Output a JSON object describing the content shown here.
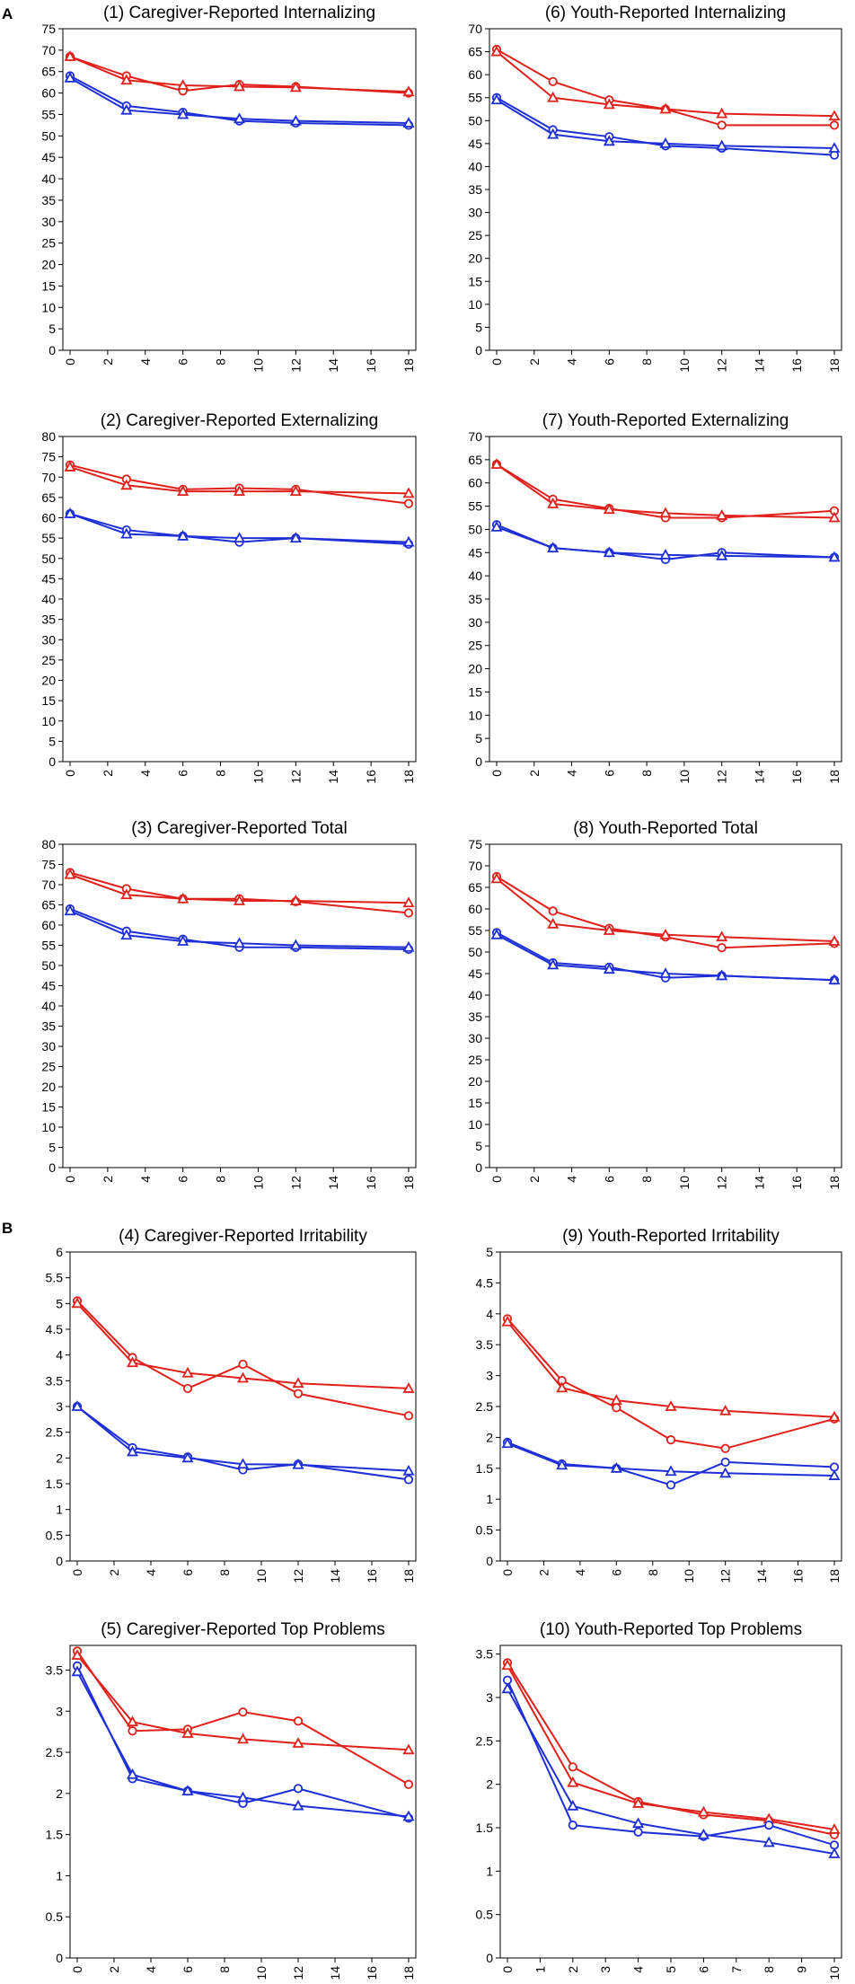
{
  "figure": {
    "section_labels": [
      "A",
      "B"
    ],
    "series_colors": {
      "red": "#e0201b",
      "blue": "#1f2fd6"
    },
    "marker_shapes": {
      "circle": "circle-marker",
      "triangle": "triangle-marker"
    }
  },
  "chart_data": [
    {
      "id": "p1",
      "type": "line",
      "title": "(1) Caregiver-Reported Internalizing",
      "x": [
        0,
        3,
        6,
        9,
        12,
        18
      ],
      "ylim": [
        0,
        75
      ],
      "ystep": 5,
      "xlim": [
        0,
        18
      ],
      "xticks": [
        0,
        2,
        4,
        6,
        8,
        10,
        12,
        14,
        16,
        18
      ],
      "ytick_decimals": 0,
      "series": [
        {
          "name": "red circle",
          "color": "red",
          "marker": "circle",
          "values": [
            68.5,
            64,
            60.5,
            62,
            61.5,
            60
          ]
        },
        {
          "name": "red triangle",
          "color": "red",
          "marker": "triangle",
          "values": [
            68.5,
            63,
            61.8,
            61.5,
            61.3,
            60.3
          ]
        },
        {
          "name": "blue circle",
          "color": "blue",
          "marker": "circle",
          "values": [
            64,
            57,
            55.5,
            53.5,
            53,
            52.5
          ]
        },
        {
          "name": "blue triangle",
          "color": "blue",
          "marker": "triangle",
          "values": [
            63.5,
            56,
            55,
            54,
            53.5,
            53
          ]
        }
      ]
    },
    {
      "id": "p6",
      "type": "line",
      "title": "(6) Youth-Reported Internalizing",
      "x": [
        0,
        3,
        6,
        9,
        12,
        18
      ],
      "ylim": [
        0,
        70
      ],
      "ystep": 5,
      "xlim": [
        0,
        18
      ],
      "xticks": [
        0,
        2,
        4,
        6,
        8,
        10,
        12,
        14,
        16,
        18
      ],
      "ytick_decimals": 0,
      "series": [
        {
          "name": "red circle",
          "color": "red",
          "marker": "circle",
          "values": [
            65.5,
            58.5,
            54.5,
            52.5,
            49,
            49
          ]
        },
        {
          "name": "red triangle",
          "color": "red",
          "marker": "triangle",
          "values": [
            65,
            55,
            53.5,
            52.5,
            51.5,
            51
          ]
        },
        {
          "name": "blue circle",
          "color": "blue",
          "marker": "circle",
          "values": [
            55,
            48,
            46.5,
            44.5,
            44,
            42.5
          ]
        },
        {
          "name": "blue triangle",
          "color": "blue",
          "marker": "triangle",
          "values": [
            54.5,
            47,
            45.5,
            45,
            44.5,
            44
          ]
        }
      ]
    },
    {
      "id": "p2",
      "type": "line",
      "title": "(2) Caregiver-Reported Externalizing",
      "x": [
        0,
        3,
        6,
        9,
        12,
        18
      ],
      "ylim": [
        0,
        80
      ],
      "ystep": 5,
      "xlim": [
        0,
        18
      ],
      "xticks": [
        0,
        2,
        4,
        6,
        8,
        10,
        12,
        14,
        16,
        18
      ],
      "ytick_decimals": 0,
      "series": [
        {
          "name": "red circle",
          "color": "red",
          "marker": "circle",
          "values": [
            73,
            69.5,
            67,
            67.3,
            67,
            63.5
          ]
        },
        {
          "name": "red triangle",
          "color": "red",
          "marker": "triangle",
          "values": [
            72.5,
            68,
            66.5,
            66.5,
            66.5,
            66
          ]
        },
        {
          "name": "blue circle",
          "color": "blue",
          "marker": "circle",
          "values": [
            61,
            57,
            55.5,
            54,
            55,
            53.5
          ]
        },
        {
          "name": "blue triangle",
          "color": "blue",
          "marker": "triangle",
          "values": [
            61,
            56,
            55.5,
            55,
            55,
            54
          ]
        }
      ]
    },
    {
      "id": "p7",
      "type": "line",
      "title": "(7) Youth-Reported Externalizing",
      "x": [
        0,
        3,
        6,
        9,
        12,
        18
      ],
      "ylim": [
        0,
        70
      ],
      "ystep": 5,
      "xlim": [
        0,
        18
      ],
      "xticks": [
        0,
        2,
        4,
        6,
        8,
        10,
        12,
        14,
        16,
        18
      ],
      "ytick_decimals": 0,
      "series": [
        {
          "name": "red circle",
          "color": "red",
          "marker": "circle",
          "values": [
            64,
            56.5,
            54.5,
            52.5,
            52.5,
            54
          ]
        },
        {
          "name": "red triangle",
          "color": "red",
          "marker": "triangle",
          "values": [
            64,
            55.5,
            54.3,
            53.5,
            53,
            52.5
          ]
        },
        {
          "name": "blue circle",
          "color": "blue",
          "marker": "circle",
          "values": [
            51,
            46,
            45,
            43.5,
            45,
            44
          ]
        },
        {
          "name": "blue triangle",
          "color": "blue",
          "marker": "triangle",
          "values": [
            50.5,
            46,
            45,
            44.5,
            44.3,
            44
          ]
        }
      ]
    },
    {
      "id": "p3",
      "type": "line",
      "title": "(3) Caregiver-Reported Total",
      "x": [
        0,
        3,
        6,
        9,
        12,
        18
      ],
      "ylim": [
        0,
        80
      ],
      "ystep": 5,
      "xlim": [
        0,
        18
      ],
      "xticks": [
        0,
        2,
        4,
        6,
        8,
        10,
        12,
        14,
        16,
        18
      ],
      "ytick_decimals": 0,
      "series": [
        {
          "name": "red circle",
          "color": "red",
          "marker": "circle",
          "values": [
            73,
            69,
            66.5,
            66.5,
            65.8,
            63
          ]
        },
        {
          "name": "red triangle",
          "color": "red",
          "marker": "triangle",
          "values": [
            72.5,
            67.5,
            66.5,
            66,
            66,
            65.5
          ]
        },
        {
          "name": "blue circle",
          "color": "blue",
          "marker": "circle",
          "values": [
            64,
            58.5,
            56.5,
            54.5,
            54.5,
            54
          ]
        },
        {
          "name": "blue triangle",
          "color": "blue",
          "marker": "triangle",
          "values": [
            63.5,
            57.5,
            56,
            55.5,
            55,
            54.5
          ]
        }
      ]
    },
    {
      "id": "p8",
      "type": "line",
      "title": "(8) Youth-Reported Total",
      "x": [
        0,
        3,
        6,
        9,
        12,
        18
      ],
      "ylim": [
        0,
        75
      ],
      "ystep": 5,
      "xlim": [
        0,
        18
      ],
      "xticks": [
        0,
        2,
        4,
        6,
        8,
        10,
        12,
        14,
        16,
        18
      ],
      "ytick_decimals": 0,
      "series": [
        {
          "name": "red circle",
          "color": "red",
          "marker": "circle",
          "values": [
            67.5,
            59.5,
            55.5,
            53.5,
            51,
            52
          ]
        },
        {
          "name": "red triangle",
          "color": "red",
          "marker": "triangle",
          "values": [
            67,
            56.5,
            55,
            54,
            53.5,
            52.5
          ]
        },
        {
          "name": "blue circle",
          "color": "blue",
          "marker": "circle",
          "values": [
            54.5,
            47.5,
            46.5,
            44,
            44.5,
            43.5
          ]
        },
        {
          "name": "blue triangle",
          "color": "blue",
          "marker": "triangle",
          "values": [
            54,
            47,
            46,
            45,
            44.5,
            43.5
          ]
        }
      ]
    },
    {
      "id": "p4",
      "type": "line",
      "title": "(4) Caregiver-Reported Irritability",
      "x": [
        0,
        3,
        6,
        9,
        12,
        18
      ],
      "ylim": [
        0,
        6
      ],
      "ystep": 0.5,
      "xlim": [
        0,
        18
      ],
      "xticks": [
        0,
        2,
        4,
        6,
        8,
        10,
        12,
        14,
        16,
        18
      ],
      "ytick_decimals": 1,
      "series": [
        {
          "name": "red circle",
          "color": "red",
          "marker": "circle",
          "values": [
            5.05,
            3.95,
            3.35,
            3.82,
            3.25,
            2.82
          ]
        },
        {
          "name": "red triangle",
          "color": "red",
          "marker": "triangle",
          "values": [
            5.0,
            3.85,
            3.65,
            3.55,
            3.45,
            3.35
          ]
        },
        {
          "name": "blue circle",
          "color": "blue",
          "marker": "circle",
          "values": [
            3.0,
            2.2,
            2.02,
            1.77,
            1.88,
            1.58
          ]
        },
        {
          "name": "blue triangle",
          "color": "blue",
          "marker": "triangle",
          "values": [
            3.0,
            2.12,
            2.0,
            1.88,
            1.87,
            1.75
          ]
        }
      ]
    },
    {
      "id": "p9",
      "type": "line",
      "title": "(9) Youth-Reported Irritability",
      "x": [
        0,
        3,
        6,
        9,
        12,
        18
      ],
      "ylim": [
        0,
        5
      ],
      "ystep": 0.5,
      "xlim": [
        0,
        18
      ],
      "xticks": [
        0,
        2,
        4,
        6,
        8,
        10,
        12,
        14,
        16,
        18
      ],
      "ytick_decimals": 1,
      "series": [
        {
          "name": "red circle",
          "color": "red",
          "marker": "circle",
          "values": [
            3.92,
            2.92,
            2.48,
            1.96,
            1.82,
            2.3
          ]
        },
        {
          "name": "red triangle",
          "color": "red",
          "marker": "triangle",
          "values": [
            3.87,
            2.8,
            2.6,
            2.5,
            2.43,
            2.33
          ]
        },
        {
          "name": "blue circle",
          "color": "blue",
          "marker": "circle",
          "values": [
            1.92,
            1.57,
            1.5,
            1.23,
            1.6,
            1.52
          ]
        },
        {
          "name": "blue triangle",
          "color": "blue",
          "marker": "triangle",
          "values": [
            1.9,
            1.55,
            1.5,
            1.45,
            1.42,
            1.38
          ]
        }
      ]
    },
    {
      "id": "p5",
      "type": "line",
      "title": "(5) Caregiver-Reported Top Problems",
      "x": [
        0,
        3,
        6,
        9,
        12,
        18
      ],
      "ylim": [
        0,
        3.8
      ],
      "ystep": 0.5,
      "ytop_tick": 3.5,
      "xlim": [
        0,
        18
      ],
      "xticks": [
        0,
        2,
        4,
        6,
        8,
        10,
        12,
        14,
        16,
        18
      ],
      "ytick_decimals": 1,
      "series": [
        {
          "name": "red circle",
          "color": "red",
          "marker": "circle",
          "values": [
            3.73,
            2.76,
            2.78,
            2.99,
            2.88,
            2.11
          ]
        },
        {
          "name": "red triangle",
          "color": "red",
          "marker": "triangle",
          "values": [
            3.68,
            2.87,
            2.73,
            2.66,
            2.61,
            2.53
          ]
        },
        {
          "name": "blue circle",
          "color": "blue",
          "marker": "circle",
          "values": [
            3.55,
            2.18,
            2.03,
            1.88,
            2.06,
            1.7
          ]
        },
        {
          "name": "blue triangle",
          "color": "blue",
          "marker": "triangle",
          "values": [
            3.48,
            2.23,
            2.03,
            1.95,
            1.85,
            1.72
          ]
        }
      ]
    },
    {
      "id": "p10",
      "type": "line",
      "title": "(10) Youth-Reported Top Problems",
      "x": [
        0,
        2,
        4,
        6,
        8,
        10
      ],
      "ylim": [
        0,
        3.6
      ],
      "ystep": 0.5,
      "ytop_tick": 3.5,
      "xlim": [
        0,
        10
      ],
      "xticks": [
        0,
        1,
        2,
        3,
        4,
        5,
        6,
        7,
        8,
        9,
        10
      ],
      "ytick_decimals": 1,
      "series": [
        {
          "name": "red circle",
          "color": "red",
          "marker": "circle",
          "values": [
            3.4,
            2.2,
            1.8,
            1.65,
            1.58,
            1.42
          ]
        },
        {
          "name": "red triangle",
          "color": "red",
          "marker": "triangle",
          "values": [
            3.37,
            2.02,
            1.78,
            1.68,
            1.6,
            1.48
          ]
        },
        {
          "name": "blue circle",
          "color": "blue",
          "marker": "circle",
          "values": [
            3.2,
            1.53,
            1.45,
            1.4,
            1.53,
            1.3
          ]
        },
        {
          "name": "blue triangle",
          "color": "blue",
          "marker": "triangle",
          "values": [
            3.1,
            1.75,
            1.55,
            1.42,
            1.33,
            1.2
          ]
        }
      ]
    }
  ]
}
